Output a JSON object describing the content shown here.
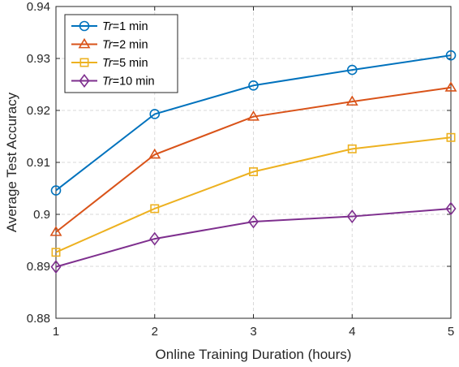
{
  "chart_data": {
    "type": "line",
    "xlabel": "Online Training Duration (hours)",
    "ylabel": "Average Test Accuracy",
    "xlim": [
      1,
      5
    ],
    "ylim": [
      0.88,
      0.94
    ],
    "x": [
      1,
      2,
      3,
      4,
      5
    ],
    "x_ticks": [
      "1",
      "2",
      "3",
      "4",
      "5"
    ],
    "y_ticks": [
      0.88,
      0.89,
      0.9,
      0.91,
      0.92,
      0.93,
      0.94
    ],
    "y_tick_labels": [
      "0.88",
      "0.89",
      "0.9",
      "0.91",
      "0.92",
      "0.93",
      "0.94"
    ],
    "grid": true,
    "legend_position": "top-left",
    "series": [
      {
        "name": "Tr=1 min",
        "name_italic": "Tr",
        "name_rest": "=1 min",
        "color": "#0072BD",
        "marker": "circle",
        "values": [
          0.9046,
          0.9193,
          0.9248,
          0.9278,
          0.9306
        ]
      },
      {
        "name": "Tr=2 min",
        "name_italic": "Tr",
        "name_rest": "=2 min",
        "color": "#D95319",
        "marker": "triangle",
        "values": [
          0.8966,
          0.9115,
          0.9188,
          0.9217,
          0.9244
        ]
      },
      {
        "name": "Tr=5 min",
        "name_italic": "Tr",
        "name_rest": "=5 min",
        "color": "#EDB120",
        "marker": "square",
        "values": [
          0.8927,
          0.9011,
          0.9082,
          0.9126,
          0.9148
        ]
      },
      {
        "name": "Tr=10 min",
        "name_italic": "Tr",
        "name_rest": "=10 min",
        "color": "#7E2F8E",
        "marker": "diamond",
        "values": [
          0.8899,
          0.8953,
          0.8986,
          0.8996,
          0.9011
        ]
      }
    ]
  }
}
